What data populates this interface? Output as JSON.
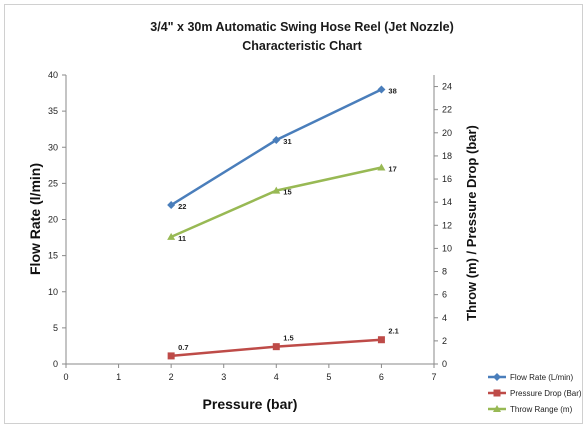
{
  "chart_data": {
    "type": "line",
    "title": "3/4\" x 30m Automatic Swing Hose Reel (Jet Nozzle)",
    "subtitle": "Characteristic Chart",
    "xlabel": "Pressure (bar)",
    "ylabel": "Flow Rate (l/min)",
    "y2label": "Throw (m) / Pressure Drop (bar)",
    "xlim": [
      0,
      7
    ],
    "ylim": [
      0,
      40
    ],
    "y2lim": [
      0,
      25
    ],
    "x_ticks": [
      "0",
      "1",
      "2",
      "3",
      "4",
      "5",
      "6",
      "7"
    ],
    "y_ticks": [
      "0",
      "5",
      "10",
      "15",
      "20",
      "25",
      "30",
      "35",
      "40"
    ],
    "y2_ticks": [
      "0",
      "2",
      "4",
      "6",
      "8",
      "10",
      "12",
      "14",
      "16",
      "18",
      "20",
      "22",
      "24"
    ],
    "grid": false,
    "legend_position": "bottom-right",
    "series": [
      {
        "name": "Flow Rate (L/min)",
        "axis": "left",
        "color": "#4a7ebb",
        "marker": "diamond",
        "x": [
          2,
          4,
          6
        ],
        "y": [
          22,
          31,
          38
        ],
        "labels": [
          "22",
          "31",
          "38"
        ]
      },
      {
        "name": "Pressure Drop (Bar)",
        "axis": "right",
        "color": "#be4b48",
        "marker": "square",
        "x": [
          2,
          4,
          6
        ],
        "y": [
          0.7,
          1.5,
          2.1
        ],
        "labels": [
          "0.7",
          "1.5",
          "2.1"
        ]
      },
      {
        "name": "Throw Range (m)",
        "axis": "right",
        "color": "#98b954",
        "marker": "triangle",
        "x": [
          2,
          4,
          6
        ],
        "y": [
          11,
          15,
          17
        ],
        "labels": [
          "11",
          "15",
          "17"
        ]
      }
    ]
  }
}
